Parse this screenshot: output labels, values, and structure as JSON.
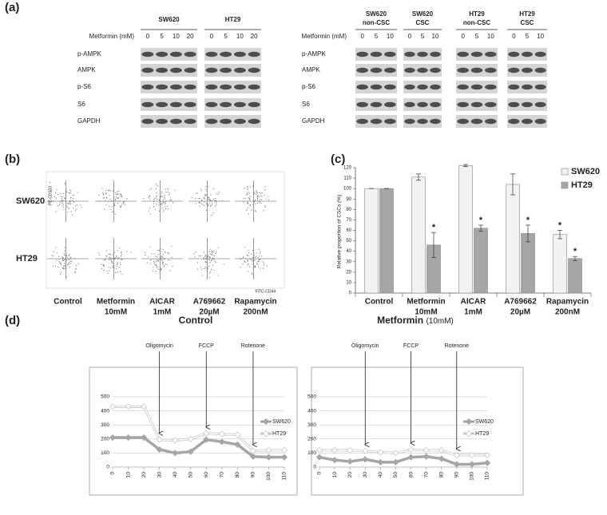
{
  "panel_labels": [
    "(a)",
    "(b)",
    "(c)",
    "(d)"
  ],
  "blots": {
    "dose_label": "Metformin (mM)",
    "rows": [
      "p-AMPK",
      "AMPK",
      "p-S6",
      "S6",
      "GAPDH"
    ],
    "left": {
      "groups": [
        {
          "name": [
            "SW620"
          ],
          "doses": [
            0,
            5,
            10,
            20
          ]
        },
        {
          "name": [
            "HT29"
          ],
          "doses": [
            0,
            5,
            10,
            20
          ]
        }
      ]
    },
    "right": {
      "groups": [
        {
          "name": [
            "SW620",
            "non-CSC"
          ],
          "doses": [
            0,
            5,
            10
          ]
        },
        {
          "name": [
            "SW620",
            "CSC"
          ],
          "doses": [
            0,
            5,
            10
          ]
        },
        {
          "name": [
            "HT29",
            "non-CSC"
          ],
          "doses": [
            0,
            5,
            10
          ]
        },
        {
          "name": [
            "HT29",
            "CSC"
          ],
          "doses": [
            0,
            5,
            10
          ]
        }
      ]
    }
  },
  "flow": {
    "rows": [
      "SW620",
      "HT29"
    ],
    "columns": [
      [
        "Control"
      ],
      [
        "Metformin",
        "10mM"
      ],
      [
        "AICAR",
        "1mM"
      ],
      [
        "A769662",
        "20µM"
      ],
      [
        "Rapamycin",
        "200nM"
      ]
    ],
    "y_label": "PE-CD133",
    "x_label": "FITC-CD44"
  },
  "chart_data": [
    {
      "type": "bar",
      "y_label": "Relative proportion of CSCs (%)",
      "categories": [
        [
          "Control"
        ],
        [
          "Metformin",
          "10mM"
        ],
        [
          "AICAR",
          "1mM"
        ],
        [
          "A769662",
          "20µM"
        ],
        [
          "Rapamycin",
          "200nM"
        ]
      ],
      "series": [
        {
          "name": "SW620",
          "color": "#f2f2f2",
          "values": [
            100,
            111,
            122,
            104,
            56
          ],
          "errors": [
            0,
            3,
            1,
            10,
            4
          ],
          "markers": [
            null,
            null,
            null,
            null,
            "*"
          ]
        },
        {
          "name": "HT29",
          "color": "#a6a6a6",
          "values": [
            100,
            46,
            62,
            57,
            33
          ],
          "errors": [
            0,
            12,
            3,
            8,
            2
          ],
          "markers": [
            null,
            "*",
            "*",
            "*",
            "*"
          ]
        }
      ],
      "ylim": [
        0,
        120
      ],
      "yticks": [
        0,
        10,
        20,
        30,
        40,
        50,
        60,
        70,
        80,
        90,
        100,
        110,
        120
      ],
      "legend": "upper right"
    },
    {
      "type": "line",
      "title": "Control",
      "x": [
        0,
        10,
        20,
        30,
        40,
        50,
        60,
        70,
        80,
        90,
        100,
        110
      ],
      "xlim": [
        0,
        110
      ],
      "xticks": [
        0,
        10,
        20,
        30,
        40,
        50,
        60,
        70,
        80,
        90,
        100,
        110
      ],
      "ylim": [
        0,
        500
      ],
      "yticks": [
        0,
        100,
        200,
        300,
        400,
        500
      ],
      "series": [
        {
          "name": "SW620",
          "color": "#a6a6a6",
          "values": [
            210,
            210,
            210,
            125,
            100,
            110,
            195,
            180,
            160,
            75,
            70,
            70
          ]
        },
        {
          "name": "HT29",
          "color": "#c8c8c8",
          "values": [
            430,
            430,
            430,
            195,
            190,
            200,
            240,
            235,
            230,
            115,
            120,
            120
          ]
        }
      ],
      "annotations": [
        {
          "text": "Oligomycin",
          "x": 30
        },
        {
          "text": "FCCP",
          "x": 60
        },
        {
          "text": "Rotenone",
          "x": 90
        }
      ],
      "legend": "right"
    },
    {
      "type": "line",
      "title": "Metformin",
      "subtitle": "(10mM)",
      "x": [
        0,
        10,
        20,
        30,
        40,
        50,
        60,
        70,
        80,
        90,
        100,
        110
      ],
      "xlim": [
        0,
        110
      ],
      "xticks": [
        0,
        10,
        20,
        30,
        40,
        50,
        60,
        70,
        80,
        90,
        100,
        110
      ],
      "ylim": [
        0,
        500
      ],
      "yticks": [
        0,
        100,
        200,
        300,
        400,
        500
      ],
      "series": [
        {
          "name": "SW620",
          "color": "#a6a6a6",
          "values": [
            70,
            50,
            40,
            55,
            35,
            35,
            70,
            75,
            60,
            20,
            20,
            30
          ]
        },
        {
          "name": "HT29",
          "color": "#c8c8c8",
          "values": [
            120,
            120,
            120,
            115,
            105,
            100,
            125,
            120,
            120,
            85,
            85,
            85
          ]
        }
      ],
      "annotations": [
        {
          "text": "Oligomycin",
          "x": 30
        },
        {
          "text": "FCCP",
          "x": 60
        },
        {
          "text": "Rotenone",
          "x": 90
        }
      ],
      "legend": "right"
    }
  ]
}
